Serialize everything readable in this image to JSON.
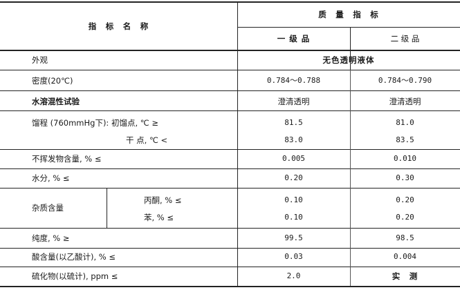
{
  "header": {
    "name_col": "指　标　名　称",
    "quality": "质　量　指　标",
    "grade1": "一 级 品",
    "grade2": "二 级 品"
  },
  "rows": [
    {
      "name": "外观",
      "merged": "无色透明液体"
    },
    {
      "name": "密度(20℃)",
      "g1": "0.784～0.788",
      "g2": "0.784～0.790"
    },
    {
      "name": "水溶混性试验",
      "g1": "澄清透明",
      "g2": "澄清透明"
    },
    {
      "name": "馏程 (760mmHg下): 初馏点, ℃ ≥",
      "g1": "81.5",
      "g2": "81.0"
    },
    {
      "name": "干 点, ℃ <",
      "g1": "83.0",
      "g2": "83.5"
    },
    {
      "name": "不挥发物含量, % ≤",
      "g1": "0.005",
      "g2": "0.010"
    },
    {
      "name": "水分, % ≤",
      "g1": "0.20",
      "g2": "0.30"
    },
    {
      "group": "杂质含量",
      "name": "丙酮, % ≤",
      "g1": "0.10",
      "g2": "0.20"
    },
    {
      "name": "苯, % ≤",
      "g1": "0.10",
      "g2": "0.20"
    },
    {
      "name": "纯度, % ≥",
      "g1": "99.5",
      "g2": "98.5"
    },
    {
      "name": "酸含量(以乙酸计), % ≤",
      "g1": "0.03",
      "g2": "0.004"
    },
    {
      "name": "硫化物(以硫计), ppm ≤",
      "g1": "2.0",
      "g2": "实　测"
    }
  ]
}
